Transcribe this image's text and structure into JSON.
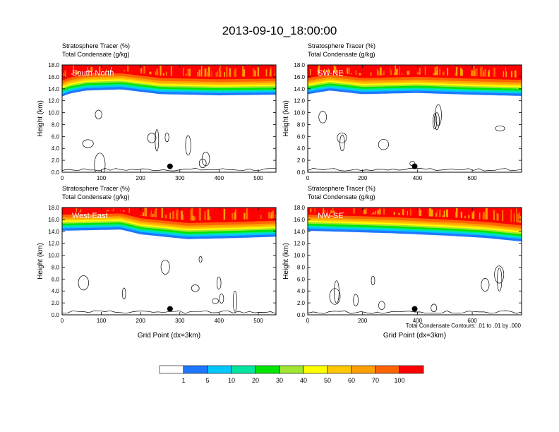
{
  "title": "2013-09-10_18:00:00",
  "colors": {
    "levels": [
      "#ffffff",
      "#1e78ff",
      "#00c8ff",
      "#00e6a0",
      "#00e600",
      "#a0e632",
      "#ffff00",
      "#ffc800",
      "#ffa000",
      "#ff6400",
      "#ff0000"
    ],
    "contour": "#000000",
    "marker": "#000000"
  },
  "colorbar": {
    "labels": [
      "1",
      "5",
      "10",
      "20",
      "30",
      "40",
      "50",
      "60",
      "70",
      "100"
    ]
  },
  "footnote": "Total Condensate Contours: .01 to .01 by .000",
  "chart_data": [
    {
      "type": "contour",
      "panel_label": "South-North",
      "subtitle_line1": "Stratosphere Tracer   (%)",
      "subtitle_line2": "Total Condensate   (g/kg)",
      "ylabel": "Height (km)",
      "xlabel": "",
      "xlim": [
        0,
        545
      ],
      "ylim": [
        0,
        18
      ],
      "xticks": [
        "0",
        "100",
        "200",
        "300",
        "400",
        "500"
      ],
      "xtick_values": [
        0,
        100,
        200,
        300,
        400,
        500
      ],
      "yticks": [
        "0.0",
        "2.0",
        "4.0",
        "6.0",
        "8.0",
        "10.0",
        "12.0",
        "14.0",
        "16.0",
        "18.0"
      ],
      "tropopause_km": [
        [
          0,
          13.6
        ],
        [
          20,
          14.1
        ],
        [
          60,
          14.6
        ],
        [
          150,
          14.8
        ],
        [
          250,
          14.0
        ],
        [
          400,
          13.8
        ],
        [
          545,
          13.9
        ]
      ],
      "marker": {
        "x": 275,
        "y": 1.0
      }
    },
    {
      "type": "contour",
      "panel_label": "SW-NE",
      "subtitle_line1": "Stratosphere Tracer   (%)",
      "subtitle_line2": "Total Condensate   (g/kg)",
      "ylabel": "Height (km)",
      "xlabel": "",
      "xlim": [
        0,
        780
      ],
      "ylim": [
        0,
        18
      ],
      "xticks": [
        "0",
        "200",
        "400",
        "600"
      ],
      "xtick_values": [
        0,
        200,
        400,
        600
      ],
      "yticks": [
        "0.0",
        "2.0",
        "4.0",
        "6.0",
        "8.0",
        "10.0",
        "12.0",
        "14.0",
        "16.0",
        "18.0"
      ],
      "tropopause_km": [
        [
          0,
          14.0
        ],
        [
          80,
          14.6
        ],
        [
          200,
          14.0
        ],
        [
          400,
          14.2
        ],
        [
          600,
          13.9
        ],
        [
          780,
          13.7
        ]
      ],
      "marker": {
        "x": 390,
        "y": 1.0
      }
    },
    {
      "type": "contour",
      "panel_label": "West-East",
      "subtitle_line1": "Stratosphere Tracer   (%)",
      "subtitle_line2": "Total Condensate   (g/kg)",
      "ylabel": "Height (km)",
      "xlabel": "Grid Point (dx=3km)",
      "xlim": [
        0,
        545
      ],
      "ylim": [
        0,
        18
      ],
      "xticks": [
        "0",
        "100",
        "200",
        "300",
        "400",
        "500"
      ],
      "xtick_values": [
        0,
        100,
        200,
        300,
        400,
        500
      ],
      "yticks": [
        "0.0",
        "2.0",
        "4.0",
        "6.0",
        "8.0",
        "10.0",
        "12.0",
        "14.0",
        "16.0",
        "18.0"
      ],
      "tropopause_km": [
        [
          0,
          15.0
        ],
        [
          150,
          15.2
        ],
        [
          200,
          14.4
        ],
        [
          320,
          13.6
        ],
        [
          450,
          13.8
        ],
        [
          545,
          14.0
        ]
      ],
      "marker": {
        "x": 275,
        "y": 1.0
      }
    },
    {
      "type": "contour",
      "panel_label": "NW-SE",
      "subtitle_line1": "Stratosphere Tracer   (%)",
      "subtitle_line2": "Total Condensate   (g/kg)",
      "ylabel": "Height (km)",
      "xlabel": "Grid Point (dx=3km)",
      "xlim": [
        0,
        780
      ],
      "ylim": [
        0,
        18
      ],
      "xticks": [
        "0",
        "200",
        "400",
        "600"
      ],
      "xtick_values": [
        0,
        200,
        400,
        600
      ],
      "yticks": [
        "0.0",
        "2.0",
        "4.0",
        "6.0",
        "8.0",
        "10.0",
        "12.0",
        "14.0",
        "16.0",
        "18.0"
      ],
      "tropopause_km": [
        [
          0,
          15.0
        ],
        [
          300,
          14.6
        ],
        [
          500,
          14.2
        ],
        [
          650,
          13.8
        ],
        [
          780,
          13.2
        ]
      ],
      "marker": {
        "x": 390,
        "y": 1.0
      }
    }
  ]
}
